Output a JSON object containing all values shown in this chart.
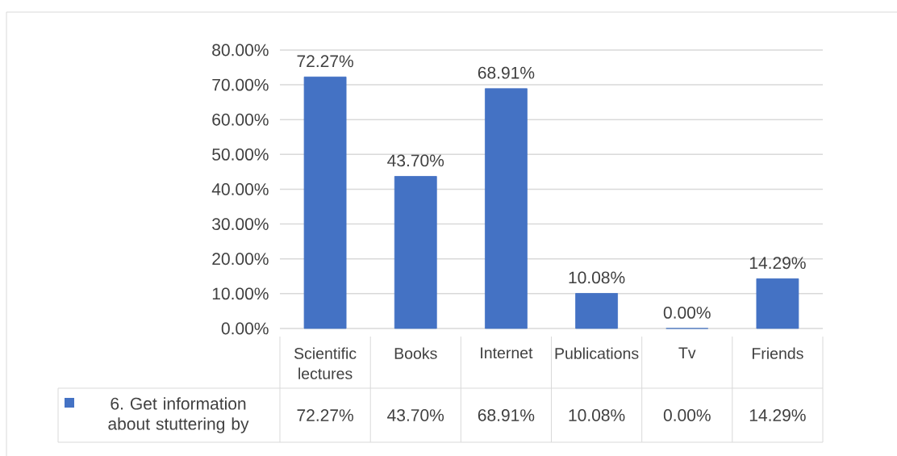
{
  "chart_data": {
    "type": "bar",
    "categories": [
      "Scientific lectures",
      "Books",
      "Internet",
      "Publications",
      "Tv",
      "Friends"
    ],
    "series": [
      {
        "name": "6. Get information about stuttering by",
        "color": "#4472c4",
        "values": [
          72.27,
          43.7,
          68.91,
          10.08,
          0,
          14.29
        ],
        "value_labels": [
          "72.27%",
          "43.70%",
          "68.91%",
          "10.08%",
          "0.00%",
          "14.29%"
        ]
      }
    ],
    "ylim": [
      0,
      80
    ],
    "yticks": [
      {
        "value": 0,
        "label": "0.00%"
      },
      {
        "value": 10,
        "label": "10.00%"
      },
      {
        "value": 20,
        "label": "20.00%"
      },
      {
        "value": 30,
        "label": "30.00%"
      },
      {
        "value": 40,
        "label": "40.00%"
      },
      {
        "value": 50,
        "label": "50.00%"
      },
      {
        "value": 60,
        "label": "60.00%"
      },
      {
        "value": 70,
        "label": "70.00%"
      },
      {
        "value": 80,
        "label": "80.00%"
      }
    ],
    "grid": "y",
    "legend": "bottom left"
  }
}
